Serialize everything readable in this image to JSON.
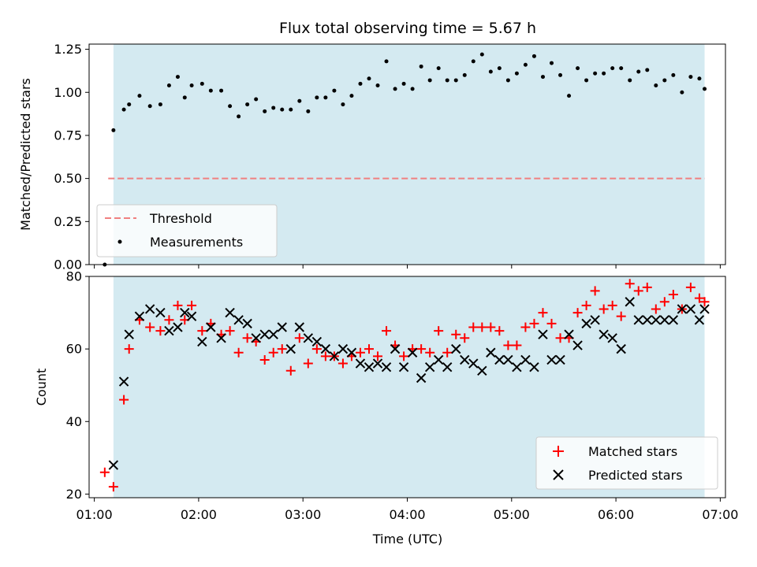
{
  "chart_data": [
    {
      "type": "scatter",
      "title": "Flux total observing time = 5.67 h",
      "xlabel": "",
      "ylabel": "Matched/Predicted stars",
      "ylim": [
        0,
        1.28
      ],
      "yticks": [
        "0.00",
        "0.25",
        "0.50",
        "0.75",
        "1.00",
        "1.25"
      ],
      "shaded_region": {
        "x_start": "01:11",
        "x_end": "06:51",
        "color": "#d4eaf1"
      },
      "legend": {
        "placement": "lower-left",
        "entries": [
          "Threshold",
          "Measurements"
        ]
      },
      "series": [
        {
          "name": "Threshold",
          "style": "dashed-line",
          "color": "#f08080",
          "x": [
            "01:08",
            "06:51"
          ],
          "y": [
            0.5,
            0.5
          ]
        },
        {
          "name": "Measurements",
          "style": "dot",
          "color": "#000000",
          "x": [
            "01:06",
            "01:11",
            "01:17",
            "01:20",
            "01:26",
            "01:32",
            "01:38",
            "01:43",
            "01:48",
            "01:52",
            "01:56",
            "02:02",
            "02:07",
            "02:13",
            "02:18",
            "02:23",
            "02:28",
            "02:33",
            "02:38",
            "02:43",
            "02:48",
            "02:53",
            "02:58",
            "03:03",
            "03:08",
            "03:13",
            "03:18",
            "03:23",
            "03:28",
            "03:33",
            "03:38",
            "03:43",
            "03:48",
            "03:53",
            "03:58",
            "04:03",
            "04:08",
            "04:13",
            "04:18",
            "04:23",
            "04:28",
            "04:33",
            "04:38",
            "04:43",
            "04:48",
            "04:53",
            "04:58",
            "05:03",
            "05:08",
            "05:13",
            "05:18",
            "05:23",
            "05:28",
            "05:33",
            "05:38",
            "05:43",
            "05:48",
            "05:53",
            "05:58",
            "06:03",
            "06:08",
            "06:13",
            "06:18",
            "06:23",
            "06:28",
            "06:33",
            "06:38",
            "06:43",
            "06:48",
            "06:51"
          ],
          "y": [
            0.0,
            0.78,
            0.9,
            0.93,
            0.98,
            0.92,
            0.93,
            1.04,
            1.09,
            0.97,
            1.04,
            1.05,
            1.01,
            1.01,
            0.92,
            0.86,
            0.93,
            0.96,
            0.89,
            0.91,
            0.9,
            0.9,
            0.95,
            0.89,
            0.97,
            0.97,
            1.01,
            0.93,
            0.98,
            1.05,
            1.08,
            1.04,
            1.18,
            1.02,
            1.05,
            1.02,
            1.15,
            1.07,
            1.14,
            1.07,
            1.07,
            1.1,
            1.18,
            1.22,
            1.12,
            1.14,
            1.07,
            1.11,
            1.16,
            1.21,
            1.09,
            1.17,
            1.1,
            0.98,
            1.14,
            1.07,
            1.11,
            1.11,
            1.14,
            1.14,
            1.07,
            1.12,
            1.13,
            1.04,
            1.07,
            1.1,
            1.0,
            1.09,
            1.08,
            1.02
          ]
        }
      ]
    },
    {
      "type": "scatter",
      "xlabel": "Time (UTC)",
      "ylabel": "Count",
      "ylim": [
        19,
        80
      ],
      "yticks": [
        "20",
        "40",
        "60",
        "80"
      ],
      "xticks": [
        "01:00",
        "02:00",
        "03:00",
        "04:00",
        "05:00",
        "06:00",
        "07:00"
      ],
      "xlim": [
        "00:57",
        "07:03"
      ],
      "shaded_region": {
        "x_start": "01:11",
        "x_end": "06:51",
        "color": "#d4eaf1"
      },
      "legend": {
        "placement": "lower-right",
        "entries": [
          "Matched stars",
          "Predicted stars"
        ]
      },
      "series": [
        {
          "name": "Matched stars",
          "style": "plus",
          "color": "#ff0000",
          "x": [
            "01:06",
            "01:11",
            "01:17",
            "01:20",
            "01:26",
            "01:32",
            "01:38",
            "01:43",
            "01:48",
            "01:52",
            "01:56",
            "02:02",
            "02:07",
            "02:13",
            "02:18",
            "02:23",
            "02:28",
            "02:33",
            "02:38",
            "02:43",
            "02:48",
            "02:53",
            "02:58",
            "03:03",
            "03:08",
            "03:13",
            "03:18",
            "03:23",
            "03:28",
            "03:33",
            "03:38",
            "03:43",
            "03:48",
            "03:53",
            "03:58",
            "04:03",
            "04:08",
            "04:13",
            "04:18",
            "04:23",
            "04:28",
            "04:33",
            "04:38",
            "04:43",
            "04:48",
            "04:53",
            "04:58",
            "05:03",
            "05:08",
            "05:13",
            "05:18",
            "05:23",
            "05:28",
            "05:33",
            "05:38",
            "05:43",
            "05:48",
            "05:53",
            "05:58",
            "06:03",
            "06:08",
            "06:13",
            "06:18",
            "06:23",
            "06:28",
            "06:33",
            "06:38",
            "06:43",
            "06:48",
            "06:51"
          ],
          "y": [
            26,
            22,
            46,
            60,
            68,
            66,
            65,
            68,
            72,
            68,
            72,
            65,
            67,
            64,
            65,
            59,
            63,
            62,
            57,
            59,
            60,
            54,
            63,
            56,
            60,
            58,
            58,
            56,
            58,
            59,
            60,
            58,
            65,
            61,
            58,
            60,
            60,
            59,
            65,
            59,
            64,
            63,
            66,
            66,
            66,
            65,
            61,
            61,
            66,
            67,
            70,
            67,
            63,
            63,
            70,
            72,
            76,
            71,
            72,
            69,
            78,
            76,
            77,
            71,
            73,
            75,
            71,
            77,
            74,
            73
          ]
        },
        {
          "name": "Predicted stars",
          "style": "cross",
          "color": "#000000",
          "x": [
            "01:11",
            "01:17",
            "01:20",
            "01:26",
            "01:32",
            "01:38",
            "01:43",
            "01:48",
            "01:52",
            "01:56",
            "02:02",
            "02:07",
            "02:13",
            "02:18",
            "02:23",
            "02:28",
            "02:33",
            "02:38",
            "02:43",
            "02:48",
            "02:53",
            "02:58",
            "03:03",
            "03:08",
            "03:13",
            "03:18",
            "03:23",
            "03:28",
            "03:33",
            "03:38",
            "03:43",
            "03:48",
            "03:53",
            "03:58",
            "04:03",
            "04:08",
            "04:13",
            "04:18",
            "04:23",
            "04:28",
            "04:33",
            "04:38",
            "04:43",
            "04:48",
            "04:53",
            "04:58",
            "05:03",
            "05:08",
            "05:13",
            "05:18",
            "05:23",
            "05:28",
            "05:33",
            "05:38",
            "05:43",
            "05:48",
            "05:53",
            "05:58",
            "06:03",
            "06:08",
            "06:13",
            "06:18",
            "06:23",
            "06:28",
            "06:33",
            "06:38",
            "06:43",
            "06:48",
            "06:51"
          ],
          "y": [
            28,
            51,
            64,
            69,
            71,
            70,
            65,
            66,
            70,
            69,
            62,
            66,
            63,
            70,
            68,
            67,
            63,
            64,
            64,
            66,
            60,
            66,
            63,
            62,
            60,
            58,
            60,
            59,
            56,
            55,
            56,
            55,
            60,
            55,
            59,
            52,
            55,
            57,
            55,
            60,
            57,
            56,
            54,
            59,
            57,
            57,
            55,
            57,
            55,
            64,
            57,
            57,
            64,
            61,
            67,
            68,
            64,
            63,
            60,
            73,
            68,
            68,
            68,
            68,
            68,
            71,
            71,
            68,
            71
          ]
        }
      ]
    }
  ]
}
